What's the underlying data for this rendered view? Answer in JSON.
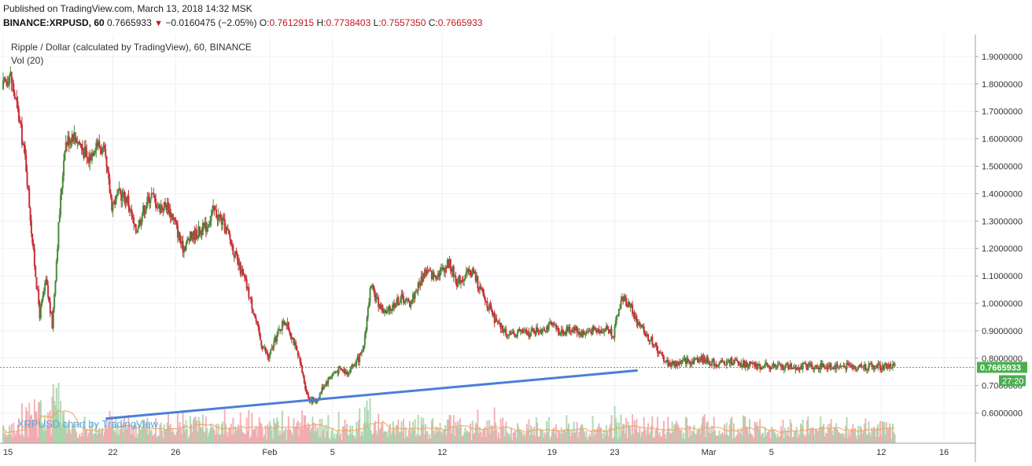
{
  "header": {
    "published": "Published on TradingView.com, March 13, 2018 14:32 MSK",
    "symbol": "BINANCE:XRPUSD, 60",
    "last": "0.7665933",
    "change_arrow": "▼",
    "change": "−0.0160475 (−2.05%)",
    "o_label": "O:",
    "o_value": "0.7612915",
    "h_label": "H:",
    "h_value": "0.7738403",
    "l_label": "L:",
    "l_value": "0.7557350",
    "c_label": "C:",
    "c_value": "0.7665933"
  },
  "chart_data": {
    "type": "candlestick",
    "title": "Ripple / Dollar (calculated by TradingView), 60, BINANCE",
    "indicator": "Vol (20)",
    "watermark": "XRPUSD chart by TradingView",
    "x_tick_labels": [
      "15",
      "22",
      "26",
      "Feb",
      "5",
      "12",
      "19",
      "23",
      "Mar",
      "5",
      "12",
      "16"
    ],
    "x_ticks_day": [
      0,
      7,
      11,
      17,
      21,
      28,
      35,
      39,
      45,
      49,
      56,
      60
    ],
    "y_tick_labels": [
      "1.9000000",
      "1.8000000",
      "1.7000000",
      "1.6000000",
      "1.5000000",
      "1.4000000",
      "1.3000000",
      "1.2000000",
      "1.1000000",
      "1.0000000",
      "0.9000000",
      "0.8000000",
      "0.7000000",
      "0.6000000"
    ],
    "ylim": [
      0.49,
      1.98
    ],
    "xlim_days": [
      0,
      62
    ],
    "last_price_label": "0.7665933",
    "countdown_label": "27:20",
    "grid": true,
    "price_path_days": [
      0,
      0.5,
      1,
      1.5,
      2,
      2.4,
      2.8,
      3.2,
      3.6,
      4,
      4.5,
      5,
      5.5,
      6,
      6.5,
      7,
      7.5,
      8,
      8.5,
      9,
      9.5,
      10,
      10.5,
      11,
      11.5,
      12,
      12.5,
      13,
      13.5,
      14,
      14.5,
      15,
      15.5,
      16,
      16.5,
      17,
      17.5,
      18,
      18.5,
      19,
      19.5,
      20,
      20.5,
      21,
      21.5,
      22,
      22.5,
      23,
      23.5,
      24,
      24.5,
      25,
      25.5,
      26,
      26.5,
      27,
      27.5,
      28,
      28.5,
      29,
      29.5,
      30,
      30.5,
      31,
      31.5,
      32,
      32.5,
      33,
      33.5,
      34,
      34.5,
      35,
      35.5,
      36,
      36.5,
      37,
      37.5,
      38,
      38.5,
      39,
      39.5,
      40,
      40.5,
      41,
      41.5,
      42,
      42.5,
      43,
      43.5,
      44,
      44.5,
      45,
      45.5,
      46,
      46.5,
      47,
      47.5,
      48,
      48.5,
      49,
      49.5,
      50,
      50.5,
      51,
      51.5,
      52,
      52.5,
      53,
      53.5,
      54,
      54.5,
      55,
      55.5,
      56,
      56.5,
      57,
      57.3
    ],
    "price_path_values": [
      1.78,
      1.84,
      1.7,
      1.52,
      1.18,
      0.96,
      1.08,
      0.92,
      1.28,
      1.58,
      1.62,
      1.58,
      1.52,
      1.59,
      1.55,
      1.36,
      1.4,
      1.38,
      1.26,
      1.34,
      1.4,
      1.35,
      1.36,
      1.3,
      1.2,
      1.24,
      1.26,
      1.28,
      1.34,
      1.3,
      1.24,
      1.15,
      1.08,
      0.98,
      0.86,
      0.8,
      0.88,
      0.94,
      0.88,
      0.78,
      0.66,
      0.64,
      0.7,
      0.74,
      0.76,
      0.75,
      0.78,
      0.82,
      1.06,
      1.0,
      0.96,
      1.0,
      1.02,
      1.0,
      1.06,
      1.12,
      1.1,
      1.12,
      1.15,
      1.08,
      1.1,
      1.12,
      1.05,
      0.99,
      0.93,
      0.9,
      0.88,
      0.9,
      0.89,
      0.9,
      0.91,
      0.92,
      0.9,
      0.9,
      0.91,
      0.89,
      0.9,
      0.9,
      0.91,
      0.89,
      1.02,
      1.0,
      0.93,
      0.89,
      0.86,
      0.81,
      0.78,
      0.78,
      0.79,
      0.79,
      0.8,
      0.79,
      0.78,
      0.78,
      0.79,
      0.78,
      0.78,
      0.77,
      0.77,
      0.77,
      0.77,
      0.77,
      0.77,
      0.77,
      0.77,
      0.77,
      0.77,
      0.77,
      0.77,
      0.77,
      0.77,
      0.77,
      0.77,
      0.77,
      0.77,
      0.77
    ],
    "trendline": {
      "day": [
        6.6,
        40.4
      ],
      "price": [
        0.58,
        0.755
      ],
      "color": "#4a7fd9"
    },
    "colors": {
      "up": "#4b8a3c",
      "down": "#c8303a",
      "grid": "#eef0f3",
      "last_price_bg": "#4caf50"
    }
  }
}
